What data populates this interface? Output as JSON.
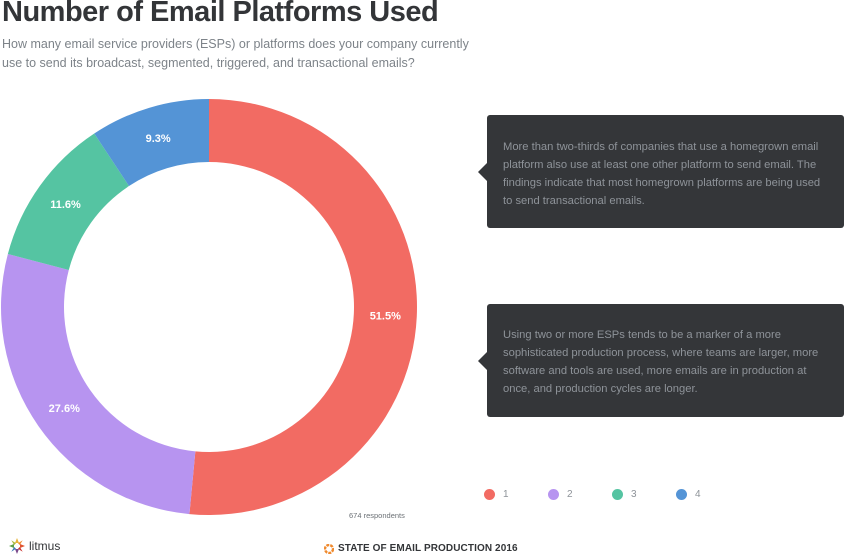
{
  "title": "Number of Email Platforms Used",
  "subtitle": "How many email service providers (ESPs) or platforms does your company currently use to send its broadcast, segmented, triggered, and transactional emails?",
  "callouts": [
    "More than two-thirds of companies that use a homegrown email platform also use at least one other platform to send email. The findings indicate that most homegrown platforms are being used to send transactional emails.",
    "Using two or more ESPs tends to be a marker of a more sophisticated production process, where teams are larger, more software and tools are used, more emails are in production at once, and production cycles are longer."
  ],
  "respondents": "674 respondents",
  "brand": "litmus",
  "footer": "STATE OF EMAIL PRODUCTION 2016",
  "legend": [
    {
      "label": "1",
      "color": "#f26b63"
    },
    {
      "label": "2",
      "color": "#b794f0"
    },
    {
      "label": "3",
      "color": "#55c4a2"
    },
    {
      "label": "4",
      "color": "#5494d6"
    }
  ],
  "chart_data": {
    "type": "pie",
    "variant": "donut",
    "title": "Number of Email Platforms Used",
    "categories": [
      "1",
      "2",
      "3",
      "4"
    ],
    "values": [
      51.5,
      27.6,
      11.6,
      9.3
    ],
    "labels": [
      "51.5%",
      "27.6%",
      "11.6%",
      "9.3%"
    ],
    "colors": [
      "#f26b63",
      "#b794f0",
      "#55c4a2",
      "#5494d6"
    ],
    "legend_position": "bottom-right",
    "note": "674 respondents"
  }
}
